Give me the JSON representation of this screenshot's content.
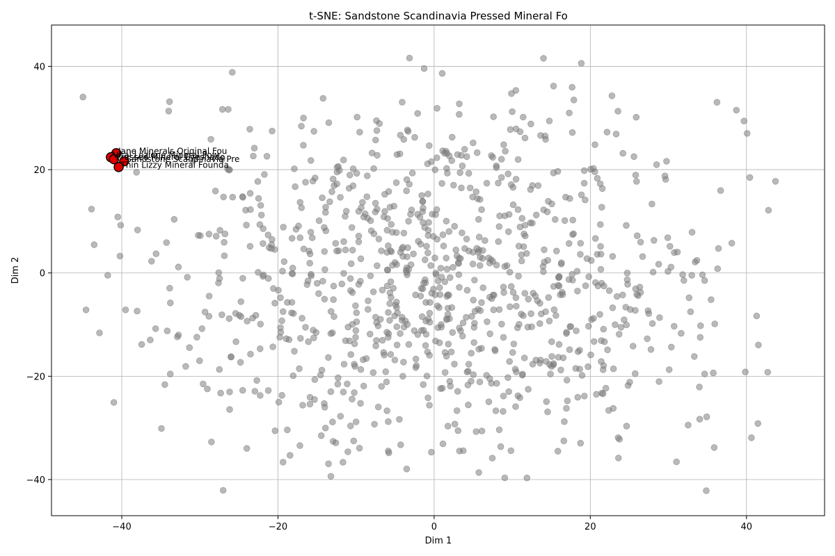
{
  "chart_data": {
    "type": "scatter",
    "title": "t-SNE: Sandstone Scandinavia Pressed Mineral Fo",
    "xlabel": "Dim 1",
    "ylabel": "Dim 2",
    "xlim": [
      -49,
      50
    ],
    "ylim": [
      -47,
      48
    ],
    "x_ticks": [
      -40,
      -20,
      0,
      20,
      40
    ],
    "y_ticks": [
      -40,
      -20,
      0,
      20,
      40
    ],
    "x_tick_labels": [
      "−40",
      "−20",
      "0",
      "20",
      "40"
    ],
    "y_tick_labels": [
      "−40",
      "−20",
      "0",
      "20",
      "40"
    ],
    "grid": true,
    "background_points": {
      "color": "#808080",
      "opacity": 0.55,
      "count": 1000,
      "x_range": [
        -45,
        45
      ],
      "y_range": [
        -43,
        43
      ]
    },
    "highlighted_series": {
      "color": "#e00000",
      "edge_color": "#000000",
      "points": [
        {
          "x": -40.7,
          "y": 23.2,
          "label": "Jane Minerals Original Fou"
        },
        {
          "x": -41.4,
          "y": 22.4,
          "label": "Vital Lozione Mineral Pow"
        },
        {
          "x": -41.0,
          "y": 22.0,
          "label": "Pressed Mineral Eyeshado"
        },
        {
          "x": -39.7,
          "y": 21.6,
          "label": "Sandstone Scandinavia Pre"
        },
        {
          "x": -40.4,
          "y": 20.5,
          "label": "Thin Lizzy Mineral Founda"
        }
      ]
    }
  }
}
